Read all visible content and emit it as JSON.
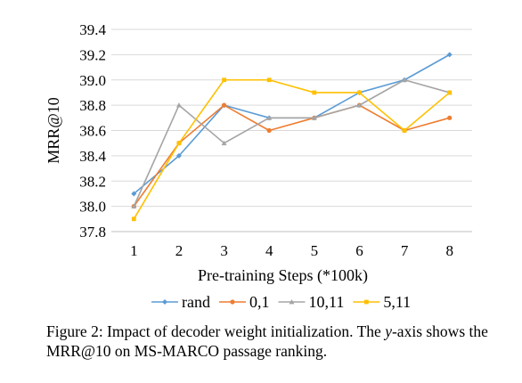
{
  "chart_data": {
    "type": "line",
    "xlabel": "Pre-training Steps (*100k)",
    "ylabel": "MRR@10",
    "x": [
      1,
      2,
      3,
      4,
      5,
      6,
      7,
      8
    ],
    "xlim": [
      0.5,
      8.5
    ],
    "ylim": [
      37.8,
      39.4
    ],
    "yticks": [
      "37.8",
      "38.0",
      "38.2",
      "38.4",
      "38.6",
      "38.8",
      "39.0",
      "39.2",
      "39.4"
    ],
    "grid": "horizontal",
    "legend": "bottom",
    "series": [
      {
        "name": "rand",
        "color": "#5b9bd5",
        "marker": "diamond",
        "values": [
          38.1,
          38.4,
          38.8,
          38.7,
          38.7,
          38.9,
          39.0,
          39.2
        ]
      },
      {
        "name": "0,1",
        "color": "#ed7d31",
        "marker": "circle",
        "values": [
          38.0,
          38.5,
          38.8,
          38.6,
          38.7,
          38.8,
          38.6,
          38.7
        ]
      },
      {
        "name": "10,11",
        "color": "#a5a5a5",
        "marker": "triangle",
        "values": [
          38.0,
          38.8,
          38.5,
          38.7,
          38.7,
          38.8,
          39.0,
          38.9
        ]
      },
      {
        "name": "5,11",
        "color": "#ffc000",
        "marker": "square",
        "values": [
          37.9,
          38.5,
          39.0,
          39.0,
          38.9,
          38.9,
          38.6,
          38.9
        ]
      }
    ]
  },
  "caption": {
    "prefix": "Figure 2: Impact of decoder weight initialization. The ",
    "var": "y",
    "suffix": "-axis shows the MRR@10 on MS-MARCO passage ranking."
  }
}
